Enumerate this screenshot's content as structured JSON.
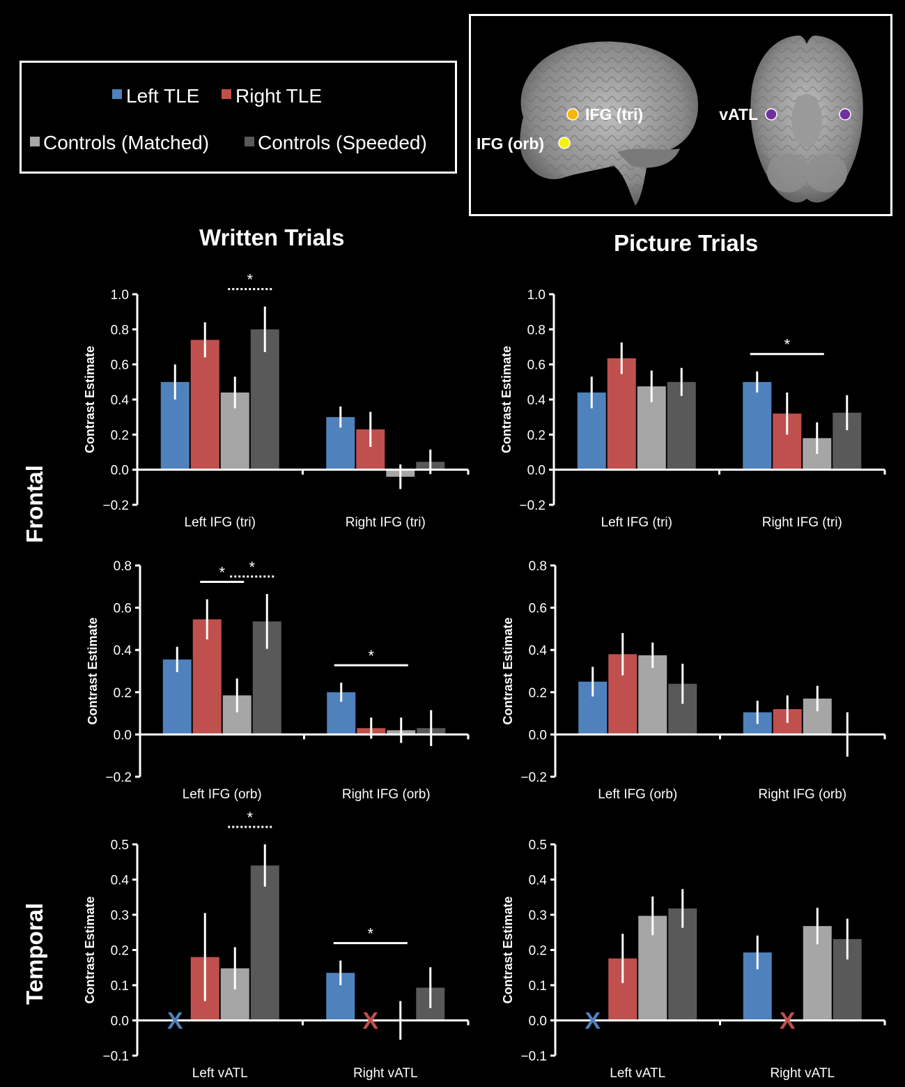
{
  "legend": [
    {
      "label": "Left TLE",
      "color": "#4f81bd"
    },
    {
      "label": "Right TLE",
      "color": "#c0504d"
    },
    {
      "label": "Controls (Matched)",
      "color": "#a6a6a6"
    },
    {
      "label": "Controls (Speeded)",
      "color": "#595959"
    }
  ],
  "brain_inset": {
    "regions": [
      {
        "label": "IFG (tri)",
        "color": "#f5b700"
      },
      {
        "label": "IFG (orb)",
        "color": "#f2f20a"
      },
      {
        "label": "vATL",
        "color": "#7030a0"
      }
    ]
  },
  "column_titles": [
    "Written Trials",
    "Picture Trials"
  ],
  "row_labels": [
    "Frontal",
    "Temporal"
  ],
  "ylabel": "Contrast Estimate",
  "chart_data": [
    {
      "type": "bar",
      "panel": "Written Trials / Left-Right IFG (tri)",
      "ylabel": "Contrast Estimate",
      "ylim": [
        -0.2,
        1.0
      ],
      "ticks": [
        "1.0",
        "0.8",
        "0.6",
        "0.4",
        "0.2",
        "0.0",
        "−0.2"
      ],
      "categories": [
        "Left IFG (tri)",
        "Right IFG (tri)"
      ],
      "series": [
        {
          "name": "Left TLE",
          "values": [
            0.5,
            0.3
          ],
          "errors": [
            0.1,
            0.06
          ]
        },
        {
          "name": "Right TLE",
          "values": [
            0.74,
            0.23
          ],
          "errors": [
            0.1,
            0.1
          ]
        },
        {
          "name": "Controls (Matched)",
          "values": [
            0.44,
            -0.04
          ],
          "errors": [
            0.09,
            0.07
          ]
        },
        {
          "name": "Controls (Speeded)",
          "values": [
            0.8,
            0.045
          ],
          "errors": [
            0.13,
            0.07
          ]
        }
      ],
      "missing": [],
      "annotations": [
        {
          "text": "*",
          "style": "dotted",
          "group": 0,
          "from": 2,
          "to": 3
        }
      ]
    },
    {
      "type": "bar",
      "panel": "Picture Trials / Left-Right IFG (tri)",
      "ylabel": "Contrast Estimate",
      "ylim": [
        -0.2,
        1.0
      ],
      "ticks": [
        "1.0",
        "0.8",
        "0.6",
        "0.4",
        "0.2",
        "0.0",
        "−0.2"
      ],
      "categories": [
        "Left IFG (tri)",
        "Right IFG (tri)"
      ],
      "series": [
        {
          "name": "Left TLE",
          "values": [
            0.44,
            0.5
          ],
          "errors": [
            0.09,
            0.06
          ]
        },
        {
          "name": "Right TLE",
          "values": [
            0.635,
            0.32
          ],
          "errors": [
            0.09,
            0.12
          ]
        },
        {
          "name": "Controls (Matched)",
          "values": [
            0.475,
            0.18
          ],
          "errors": [
            0.09,
            0.09
          ]
        },
        {
          "name": "Controls (Speeded)",
          "values": [
            0.5,
            0.325
          ],
          "errors": [
            0.08,
            0.1
          ]
        }
      ],
      "missing": [],
      "annotations": [
        {
          "text": "*",
          "style": "solid",
          "group": 1,
          "from": 0,
          "to": 2
        }
      ]
    },
    {
      "type": "bar",
      "panel": "Written Trials / Left-Right IFG (orb)",
      "ylabel": "Contrast Estimate",
      "ylim": [
        -0.2,
        0.8
      ],
      "ticks": [
        "0.8",
        "0.6",
        "0.4",
        "0.2",
        "0.0",
        "−0.2"
      ],
      "categories": [
        "Left IFG (orb)",
        "Right IFG (orb)"
      ],
      "series": [
        {
          "name": "Left TLE",
          "values": [
            0.355,
            0.2
          ],
          "errors": [
            0.06,
            0.045
          ]
        },
        {
          "name": "Right TLE",
          "values": [
            0.545,
            0.03
          ],
          "errors": [
            0.095,
            0.05
          ]
        },
        {
          "name": "Controls (Matched)",
          "values": [
            0.185,
            0.02
          ],
          "errors": [
            0.08,
            0.06
          ]
        },
        {
          "name": "Controls (Speeded)",
          "values": [
            0.535,
            0.03
          ],
          "errors": [
            0.13,
            0.085
          ]
        }
      ],
      "missing": [],
      "annotations": [
        {
          "text": "*",
          "style": "solid",
          "group": 0,
          "from": 1,
          "to": 2
        },
        {
          "text": "*",
          "style": "dotted",
          "group": 0,
          "from": 2,
          "to": 3
        },
        {
          "text": "*",
          "style": "solid",
          "group": 1,
          "from": 0,
          "to": 2
        }
      ]
    },
    {
      "type": "bar",
      "panel": "Picture Trials / Left-Right IFG (orb)",
      "ylabel": "Contrast Estimate",
      "ylim": [
        -0.2,
        0.8
      ],
      "ticks": [
        "0.8",
        "0.6",
        "0.4",
        "0.2",
        "0.0",
        "−0.2"
      ],
      "categories": [
        "Left IFG (orb)",
        "Right IFG (orb)"
      ],
      "series": [
        {
          "name": "Left TLE",
          "values": [
            0.25,
            0.105
          ],
          "errors": [
            0.07,
            0.055
          ]
        },
        {
          "name": "Right TLE",
          "values": [
            0.38,
            0.12
          ],
          "errors": [
            0.1,
            0.065
          ]
        },
        {
          "name": "Controls (Matched)",
          "values": [
            0.375,
            0.17
          ],
          "errors": [
            0.06,
            0.06
          ]
        },
        {
          "name": "Controls (Speeded)",
          "values": [
            0.24,
            0.0
          ],
          "errors": [
            0.095,
            0.105
          ]
        }
      ],
      "missing": [],
      "annotations": []
    },
    {
      "type": "bar",
      "panel": "Written Trials / Left-Right vATL",
      "ylabel": "Contrast Estimate",
      "ylim": [
        -0.1,
        0.5
      ],
      "ticks": [
        "0.5",
        "0.4",
        "0.3",
        "0.2",
        "0.1",
        "0.0",
        "−0.1"
      ],
      "categories": [
        "Left vATL",
        "Right vATL"
      ],
      "series": [
        {
          "name": "Left TLE",
          "values": [
            null,
            0.135
          ],
          "errors": [
            0,
            0.035
          ]
        },
        {
          "name": "Right TLE",
          "values": [
            0.18,
            null
          ],
          "errors": [
            0.125,
            0
          ]
        },
        {
          "name": "Controls (Matched)",
          "values": [
            0.148,
            0.0
          ],
          "errors": [
            0.06,
            0.055
          ]
        },
        {
          "name": "Controls (Speeded)",
          "values": [
            0.44,
            0.093
          ],
          "errors": [
            0.06,
            0.058
          ]
        }
      ],
      "missing": [
        {
          "group": 0,
          "series": 0,
          "text": "X"
        },
        {
          "group": 1,
          "series": 1,
          "text": "X"
        }
      ],
      "annotations": [
        {
          "text": "*",
          "style": "dotted",
          "group": 0,
          "from": 2,
          "to": 3
        },
        {
          "text": "*",
          "style": "solid",
          "group": 1,
          "from": 0,
          "to": 2
        }
      ]
    },
    {
      "type": "bar",
      "panel": "Picture Trials / Left-Right vATL",
      "ylabel": "Contrast Estimate",
      "ylim": [
        -0.1,
        0.5
      ],
      "ticks": [
        "0.5",
        "0.4",
        "0.3",
        "0.2",
        "0.1",
        "0.0",
        "−0.1"
      ],
      "categories": [
        "Left vATL",
        "Right vATL"
      ],
      "series": [
        {
          "name": "Left TLE",
          "values": [
            null,
            0.193
          ],
          "errors": [
            0,
            0.048
          ]
        },
        {
          "name": "Right TLE",
          "values": [
            0.176,
            null
          ],
          "errors": [
            0.07,
            0
          ]
        },
        {
          "name": "Controls (Matched)",
          "values": [
            0.297,
            0.268
          ],
          "errors": [
            0.055,
            0.052
          ]
        },
        {
          "name": "Controls (Speeded)",
          "values": [
            0.318,
            0.231
          ],
          "errors": [
            0.055,
            0.058
          ]
        }
      ],
      "missing": [
        {
          "group": 0,
          "series": 0,
          "text": "X"
        },
        {
          "group": 1,
          "series": 1,
          "text": "X"
        }
      ],
      "annotations": []
    }
  ]
}
